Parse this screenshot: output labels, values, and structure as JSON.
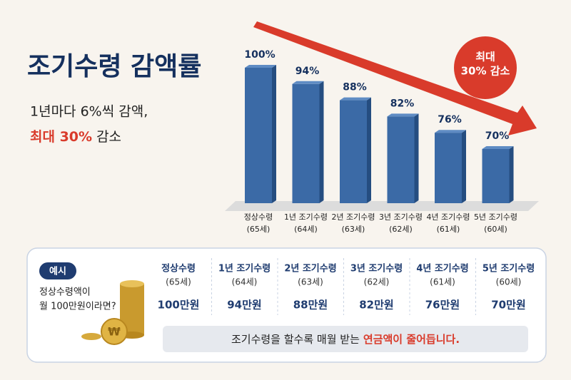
{
  "chart_data": {
    "type": "bar",
    "title": "조기수령 감액률",
    "subtitle_line1": "1년마다 6%씩 감액,",
    "subtitle_highlight": "최대 30%",
    "subtitle_rest": "감소",
    "badge_line1": "최대",
    "badge_line2": "30% 감소",
    "categories": [
      "정상수령",
      "1년 조기수령",
      "2년 조기수령",
      "3년 조기수령",
      "4년 조기수령",
      "5년 조기수령"
    ],
    "category_ages": [
      "(65세)",
      "(64세)",
      "(63세)",
      "(62세)",
      "(61세)",
      "(60세)"
    ],
    "values": [
      100,
      94,
      88,
      82,
      76,
      70
    ],
    "value_labels": [
      "100%",
      "94%",
      "88%",
      "82%",
      "76%",
      "70%"
    ],
    "color": "#3b6aa6",
    "ylim": [
      50,
      100
    ]
  },
  "example": {
    "badge": "예시",
    "line1": "정상수령액이",
    "line2": "월 100만원이라면?",
    "coin_symbol": "₩",
    "columns": [
      {
        "name": "정상수령",
        "age": "(65세)",
        "amount": "100만원"
      },
      {
        "name": "1년 조기수령",
        "age": "(64세)",
        "amount": "94만원"
      },
      {
        "name": "2년 조기수령",
        "age": "(63세)",
        "amount": "88만원"
      },
      {
        "name": "3년 조기수령",
        "age": "(62세)",
        "amount": "82만원"
      },
      {
        "name": "4년 조기수령",
        "age": "(61세)",
        "amount": "76만원"
      },
      {
        "name": "5년 조기수령",
        "age": "(60세)",
        "amount": "70만원"
      }
    ],
    "note": "조기수령을 할수록 매월 받는",
    "note_highlight": "연금액이 줄어듭니다."
  }
}
